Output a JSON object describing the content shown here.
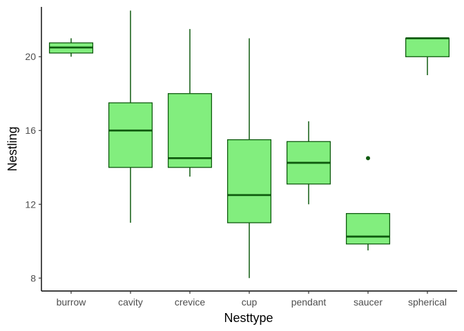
{
  "chart_data": {
    "type": "box",
    "xlabel": "Nesttype",
    "ylabel": "Nestling",
    "ylim": [
      7.3,
      22.7
    ],
    "yticks": [
      8,
      12,
      16,
      20
    ],
    "grid": false,
    "legend": "none",
    "colors": {
      "fill": "#82EE7E",
      "stroke": "#0F5A0F"
    },
    "categories": [
      "burrow",
      "cavity",
      "crevice",
      "cup",
      "pendant",
      "saucer",
      "spherical"
    ],
    "boxes": [
      {
        "category": "burrow",
        "min": 20.0,
        "q1": 20.2,
        "median": 20.5,
        "q3": 20.75,
        "max": 21.0,
        "outliers": []
      },
      {
        "category": "cavity",
        "min": 11.0,
        "q1": 14.0,
        "median": 16.0,
        "q3": 17.5,
        "max": 22.5,
        "outliers": []
      },
      {
        "category": "crevice",
        "min": 13.5,
        "q1": 14.0,
        "median": 14.5,
        "q3": 18.0,
        "max": 21.5,
        "outliers": []
      },
      {
        "category": "cup",
        "min": 8.0,
        "q1": 11.0,
        "median": 12.5,
        "q3": 15.5,
        "max": 21.0,
        "outliers": []
      },
      {
        "category": "pendant",
        "min": 12.0,
        "q1": 13.1,
        "median": 14.25,
        "q3": 15.4,
        "max": 16.5,
        "outliers": []
      },
      {
        "category": "saucer",
        "min": 9.5,
        "q1": 9.85,
        "median": 10.25,
        "q3": 11.5,
        "max": 11.5,
        "outliers": [
          14.5
        ]
      },
      {
        "category": "spherical",
        "min": 19.0,
        "q1": 20.0,
        "median": 21.0,
        "q3": 21.0,
        "max": 21.0,
        "outliers": []
      }
    ]
  }
}
